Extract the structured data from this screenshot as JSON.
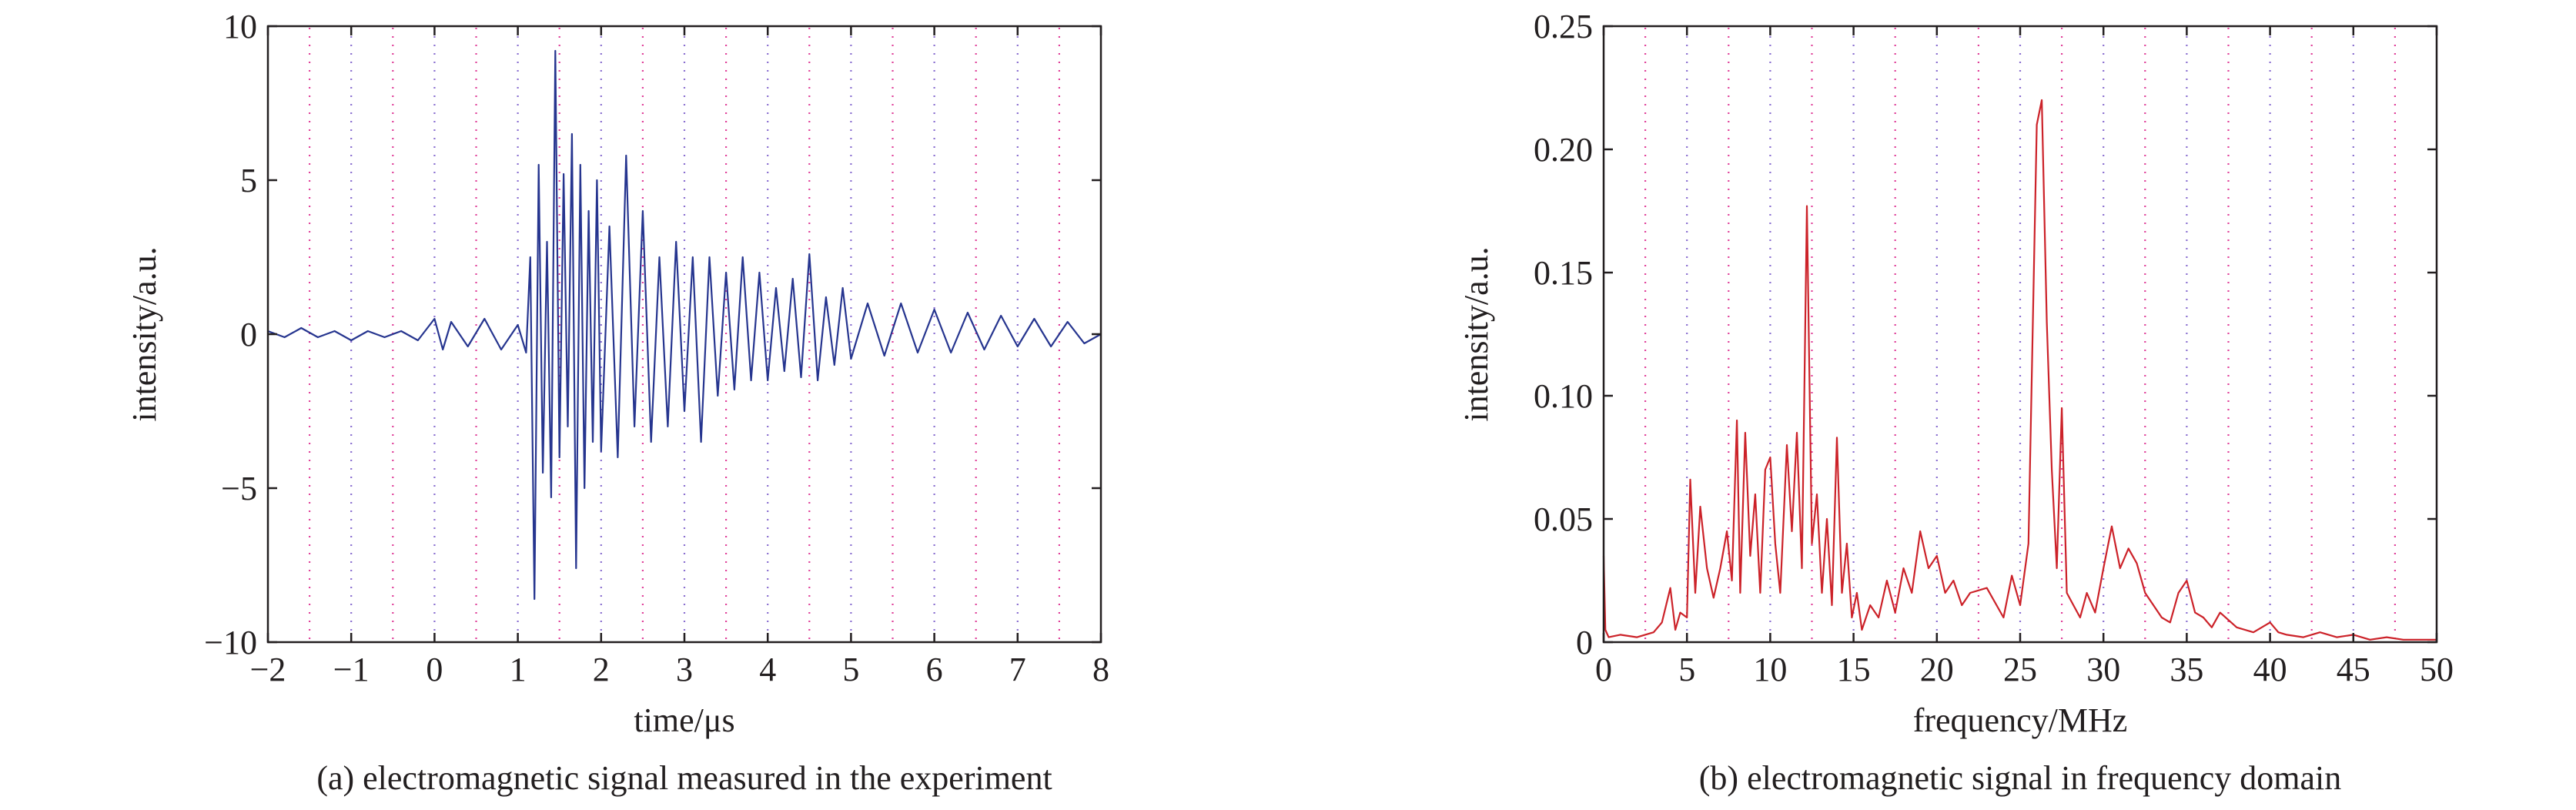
{
  "colors": {
    "axis": "#231f20",
    "grid_a": "#e0409a",
    "grid_b": "#8a6fd0",
    "series_a": "#26358f",
    "series_b": "#cc2229"
  },
  "chart_data": [
    {
      "id": "a",
      "type": "line",
      "caption": "(a) electromagnetic signal measured in the experiment",
      "xlabel": "time/μs",
      "ylabel": "intensity/a.u.",
      "xlim": [
        -2,
        8
      ],
      "ylim": [
        -10,
        10
      ],
      "xticks": [
        -2,
        -1,
        0,
        1,
        2,
        3,
        4,
        5,
        6,
        7,
        8
      ],
      "xtick_labels": [
        "−2",
        "−1",
        "0",
        "1",
        "2",
        "3",
        "4",
        "5",
        "6",
        "7",
        "8"
      ],
      "yticks": [
        -10,
        -5,
        0,
        5,
        10
      ],
      "ytick_labels": [
        "−10",
        "−5",
        "0",
        "5",
        "10"
      ],
      "grid": "dotted vertical",
      "series": [
        {
          "x": [
            -2.0,
            -1.8,
            -1.6,
            -1.4,
            -1.2,
            -1.0,
            -0.8,
            -0.6,
            -0.4,
            -0.2,
            0.0,
            0.1,
            0.2,
            0.4,
            0.6,
            0.8,
            1.0,
            1.1,
            1.15,
            1.2,
            1.25,
            1.3,
            1.35,
            1.4,
            1.45,
            1.5,
            1.55,
            1.6,
            1.65,
            1.7,
            1.75,
            1.8,
            1.85,
            1.9,
            1.95,
            2.0,
            2.1,
            2.2,
            2.3,
            2.4,
            2.5,
            2.6,
            2.7,
            2.8,
            2.9,
            3.0,
            3.1,
            3.2,
            3.3,
            3.4,
            3.5,
            3.6,
            3.7,
            3.8,
            3.9,
            4.0,
            4.1,
            4.2,
            4.3,
            4.4,
            4.5,
            4.6,
            4.7,
            4.8,
            4.9,
            5.0,
            5.2,
            5.4,
            5.6,
            5.8,
            6.0,
            6.2,
            6.4,
            6.6,
            6.8,
            7.0,
            7.2,
            7.4,
            7.6,
            7.8,
            8.0
          ],
          "y": [
            0.1,
            -0.1,
            0.2,
            -0.1,
            0.1,
            -0.2,
            0.1,
            -0.1,
            0.1,
            -0.2,
            0.5,
            -0.5,
            0.4,
            -0.4,
            0.5,
            -0.5,
            0.3,
            -0.6,
            2.5,
            -8.6,
            5.5,
            -4.5,
            3.0,
            -5.3,
            9.2,
            -4.0,
            5.2,
            -3.0,
            6.5,
            -7.6,
            5.5,
            -5.0,
            4.0,
            -3.5,
            5.0,
            -3.8,
            3.5,
            -4.0,
            5.8,
            -3.0,
            4.0,
            -3.5,
            2.5,
            -3.0,
            3.0,
            -2.5,
            2.5,
            -3.5,
            2.5,
            -2.0,
            2.0,
            -1.8,
            2.5,
            -1.5,
            2.0,
            -1.5,
            1.5,
            -1.2,
            1.8,
            -1.4,
            2.6,
            -1.5,
            1.2,
            -1.0,
            1.5,
            -0.8,
            1.0,
            -0.7,
            1.0,
            -0.6,
            0.8,
            -0.6,
            0.7,
            -0.5,
            0.6,
            -0.4,
            0.5,
            -0.4,
            0.4,
            -0.3,
            0.0
          ]
        }
      ]
    },
    {
      "id": "b",
      "type": "line",
      "caption": "(b) electromagnetic signal in frequency domain",
      "xlabel": "frequency/MHz",
      "ylabel": "intensity/a.u.",
      "xlim": [
        0,
        50
      ],
      "ylim": [
        0,
        0.25
      ],
      "xticks": [
        0,
        5,
        10,
        15,
        20,
        25,
        30,
        35,
        40,
        45,
        50
      ],
      "xtick_labels": [
        "0",
        "5",
        "10",
        "15",
        "20",
        "25",
        "30",
        "35",
        "40",
        "45",
        "50"
      ],
      "yticks": [
        0,
        0.05,
        0.1,
        0.15,
        0.2,
        0.25
      ],
      "ytick_labels": [
        "0",
        "0.05",
        "0.10",
        "0.15",
        "0.20",
        "0.25"
      ],
      "grid": "dotted vertical",
      "series": [
        {
          "x": [
            0.0,
            0.1,
            0.3,
            1.0,
            2.0,
            3.0,
            3.5,
            4.0,
            4.3,
            4.6,
            5.0,
            5.2,
            5.5,
            5.8,
            6.2,
            6.6,
            7.0,
            7.4,
            7.7,
            8.0,
            8.2,
            8.5,
            8.8,
            9.1,
            9.4,
            9.7,
            10.0,
            10.3,
            10.6,
            11.0,
            11.3,
            11.6,
            11.9,
            12.2,
            12.5,
            12.8,
            13.1,
            13.4,
            13.7,
            14.0,
            14.3,
            14.6,
            14.9,
            15.2,
            15.5,
            16.0,
            16.5,
            17.0,
            17.5,
            18.0,
            18.5,
            19.0,
            19.5,
            20.0,
            20.5,
            21.0,
            21.5,
            22.0,
            23.0,
            24.0,
            24.5,
            25.0,
            25.5,
            26.0,
            26.3,
            26.6,
            26.9,
            27.2,
            27.5,
            27.8,
            28.2,
            28.6,
            29.0,
            29.5,
            30.0,
            30.5,
            31.0,
            31.5,
            32.0,
            32.5,
            33.0,
            33.5,
            34.0,
            34.5,
            35.0,
            35.5,
            36.0,
            36.5,
            37.0,
            38.0,
            39.0,
            40.0,
            40.5,
            41.0,
            42.0,
            43.0,
            44.0,
            45.0,
            46.0,
            47.0,
            48.0,
            50.0
          ],
          "y": [
            0.035,
            0.005,
            0.002,
            0.003,
            0.002,
            0.004,
            0.008,
            0.022,
            0.005,
            0.012,
            0.01,
            0.066,
            0.02,
            0.055,
            0.03,
            0.018,
            0.03,
            0.045,
            0.025,
            0.09,
            0.02,
            0.085,
            0.035,
            0.06,
            0.02,
            0.07,
            0.075,
            0.04,
            0.02,
            0.08,
            0.045,
            0.085,
            0.03,
            0.177,
            0.04,
            0.06,
            0.02,
            0.05,
            0.015,
            0.083,
            0.02,
            0.04,
            0.01,
            0.02,
            0.005,
            0.015,
            0.01,
            0.025,
            0.012,
            0.03,
            0.02,
            0.045,
            0.03,
            0.035,
            0.02,
            0.025,
            0.015,
            0.02,
            0.022,
            0.01,
            0.027,
            0.015,
            0.04,
            0.21,
            0.22,
            0.13,
            0.07,
            0.03,
            0.095,
            0.02,
            0.015,
            0.01,
            0.02,
            0.012,
            0.03,
            0.047,
            0.03,
            0.038,
            0.032,
            0.02,
            0.015,
            0.01,
            0.008,
            0.02,
            0.025,
            0.012,
            0.01,
            0.006,
            0.012,
            0.006,
            0.004,
            0.008,
            0.004,
            0.003,
            0.002,
            0.004,
            0.002,
            0.003,
            0.001,
            0.002,
            0.001,
            0.001
          ]
        }
      ]
    }
  ]
}
